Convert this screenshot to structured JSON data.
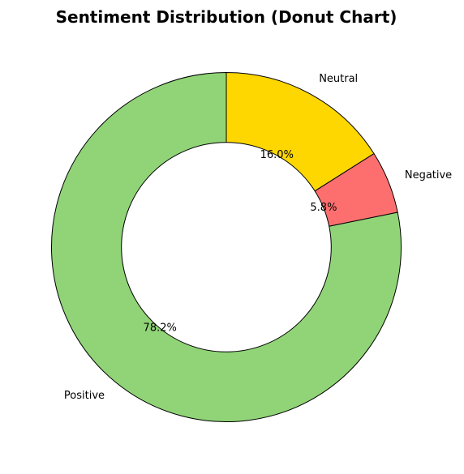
{
  "chart_data": {
    "type": "pie",
    "title": "Sentiment Distribution (Donut Chart)",
    "donut": true,
    "start_angle_deg": 90,
    "direction": "counterclockwise",
    "categories": [
      "Positive",
      "Negative",
      "Neutral"
    ],
    "values": [
      78.2,
      5.8,
      16.0
    ],
    "percent_labels": [
      "78.2%",
      "5.8%",
      "16.0%"
    ],
    "colors": [
      "#90d477",
      "#fd6f6f",
      "#ffd700"
    ],
    "edge_color": "#000000",
    "legend": "none"
  }
}
